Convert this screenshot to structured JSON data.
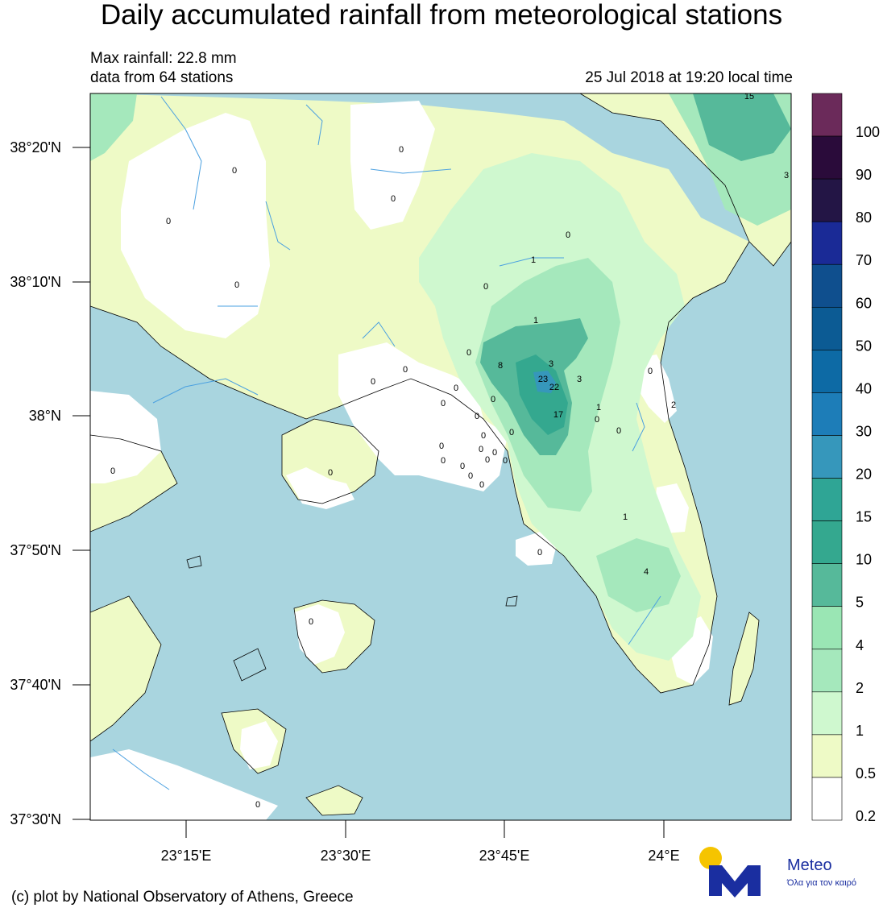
{
  "title": "Daily accumulated rainfall from meteorological stations",
  "max_rainfall": "Max rainfall: 22.8 mm",
  "stations_text": "data from 64 stations",
  "datetime": "25 Jul 2018 at 19:20 local time",
  "credit": "(c) plot by National Observatory of Athens, Greece",
  "logo": {
    "name": "Meteo",
    "subtitle": "Όλα για τον καιρό",
    "sun_color": "#f5c400",
    "m_color": "#1a2ea0"
  },
  "axes": {
    "lat_labels": [
      "38°20'N",
      "38°10'N",
      "38°N",
      "37°50'N",
      "37°40'N",
      "37°30'N"
    ],
    "lon_labels": [
      "23°15'E",
      "23°30'E",
      "23°45'E",
      "24°E"
    ]
  },
  "colorbar": {
    "labels": [
      "100",
      "90",
      "80",
      "70",
      "60",
      "50",
      "40",
      "30",
      "20",
      "15",
      "10",
      "5",
      "4",
      "2",
      "1",
      "0.5",
      "0.2"
    ],
    "colors": [
      "#6b2a5a",
      "#2a0b3a",
      "#231545",
      "#1a2a96",
      "#0f4f8e",
      "#0c5b94",
      "#0d6aa5",
      "#1d7db8",
      "#3697bb",
      "#2fa595",
      "#34a88f",
      "#56b99a",
      "#9ae6b4",
      "#a5e8bc",
      "#cff8cf",
      "#eefac6",
      "#ffffff"
    ]
  },
  "map_colors": {
    "sea": "#a9d5df",
    "r0": "#ffffff",
    "r02": "#eefac6",
    "r05": "#cff8cf",
    "r1": "#a5e8bc",
    "r2": "#9ae6b4",
    "r4": "#56b99a",
    "r10": "#34a88f",
    "r15": "#3697bb"
  },
  "station_values": [
    "15",
    "3",
    "0",
    "0",
    "0",
    "0",
    "0",
    "1",
    "0",
    "0",
    "1",
    "0",
    "0",
    "8",
    "3",
    "23",
    "22",
    "3",
    "17",
    "0",
    "1",
    "0",
    "0",
    "0",
    "2",
    "0",
    "0",
    "0",
    "0",
    "0",
    "0",
    "0",
    "0",
    "0",
    "0",
    "0",
    "0",
    "0",
    "0",
    "1",
    "0",
    "4",
    "0",
    "0",
    "0",
    "0",
    "0"
  ]
}
